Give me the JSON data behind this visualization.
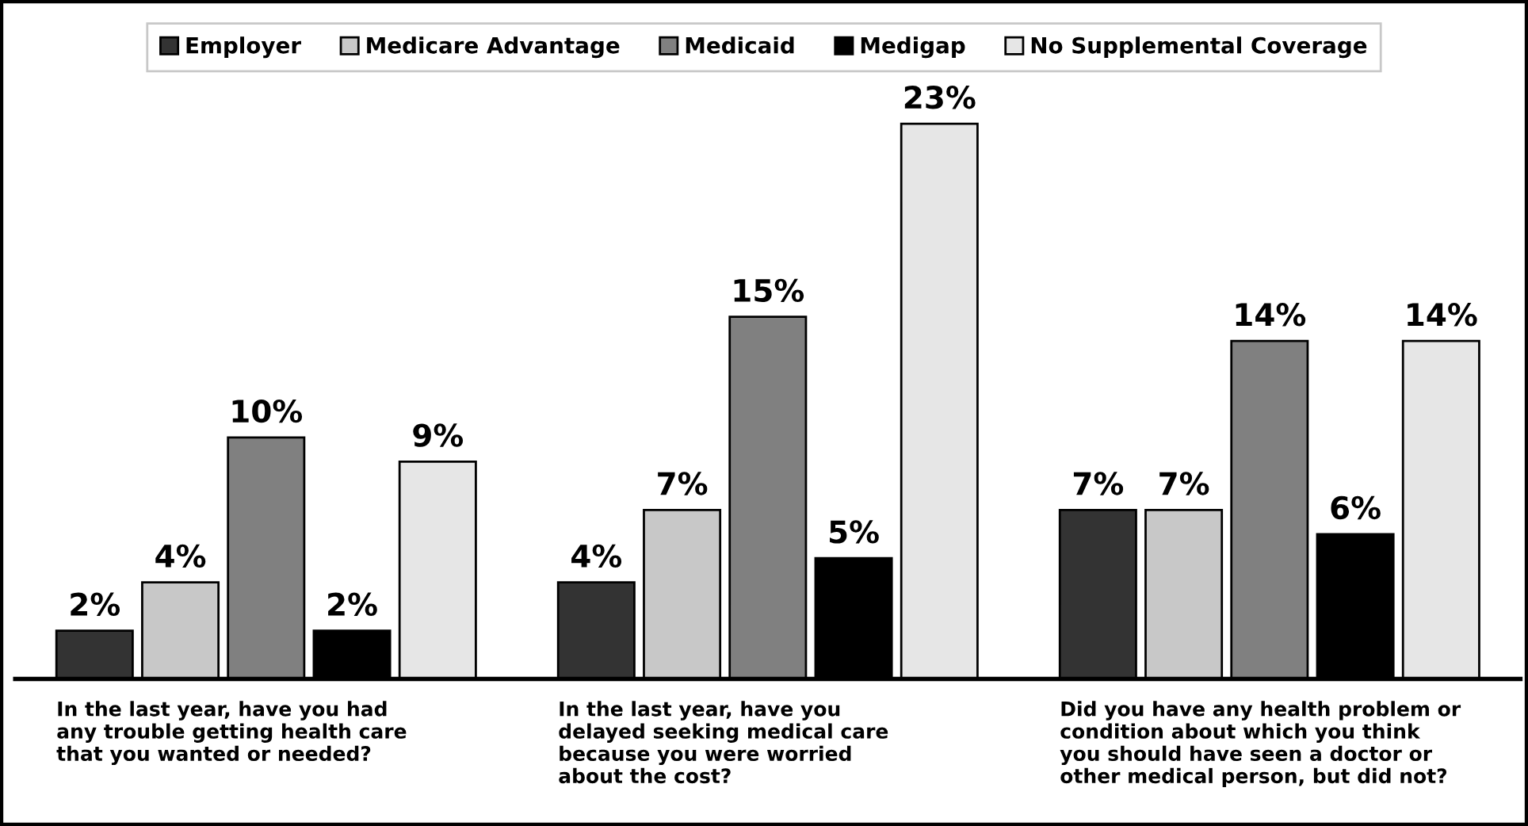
{
  "chart_data": {
    "type": "bar",
    "categories": [
      "In the last year, have you had\nany trouble getting health care\nthat you wanted or needed?",
      "In the last year, have you\ndelayed seeking medical care\nbecause you were worried\nabout the cost?",
      "Did you have any health problem or\ncondition about which you think\nyou should have seen a doctor or\nother medical person, but did not?"
    ],
    "series": [
      {
        "name": "Employer",
        "color": "#333333",
        "values": [
          2,
          4,
          7
        ],
        "value_labels": [
          "2%",
          "4%",
          "7%"
        ]
      },
      {
        "name": "Medicare Advantage",
        "color": "#c8c8c8",
        "values": [
          4,
          7,
          7
        ],
        "value_labels": [
          "4%",
          "7%",
          "7%"
        ]
      },
      {
        "name": "Medicaid",
        "color": "#808080",
        "values": [
          10,
          15,
          14
        ],
        "value_labels": [
          "10%",
          "15%",
          "14%"
        ]
      },
      {
        "name": "Medigap",
        "color": "#000000",
        "values": [
          2,
          5,
          6
        ],
        "value_labels": [
          "2%",
          "5%",
          "6%"
        ]
      },
      {
        "name": "No Supplemental Coverage",
        "color": "#e6e6e6",
        "values": [
          9,
          23,
          14
        ],
        "value_labels": [
          "9%",
          "23%",
          "14%"
        ]
      }
    ],
    "legend": "top"
  }
}
